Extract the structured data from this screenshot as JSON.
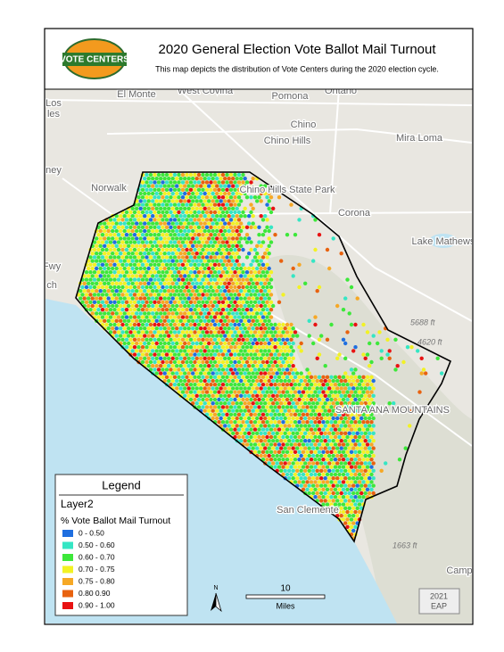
{
  "title": "2020 General Election Vote Ballot Mail Turnout",
  "subtitle": "This map depicts the distribution of Vote Centers during the 2020 election cycle.",
  "logo": "VOTE CENTERS",
  "places": [
    "El Monte",
    "West Covina",
    "Pomona",
    "Ontario",
    "Chino",
    "Chino Hills",
    "Mira Loma",
    "Norwalk",
    "Corona",
    "Lake Mathews",
    "SANTA ANA MOUNTAINS",
    "San Clemente",
    "Los",
    "les",
    "ney",
    "Fwy",
    "ch",
    "Camp",
    "Chino Hills State Park"
  ],
  "elevations": [
    "5688 ft",
    "4620 ft",
    "1663 ft"
  ],
  "legend": {
    "heading": "Legend",
    "layer": "Layer2",
    "field": "% Vote Ballot Mail Turnout",
    "items": [
      {
        "label": "0 - 0.50",
        "color": "#1f6fe0"
      },
      {
        "label": "0.50 - 0.60",
        "color": "#35e6c4"
      },
      {
        "label": "0.60 - 0.70",
        "color": "#3de83a"
      },
      {
        "label": "0.70 - 0.75",
        "color": "#f2f224"
      },
      {
        "label": "0.75 - 0.80",
        "color": "#f6a825"
      },
      {
        "label": "0.80 0.90",
        "color": "#e8620f"
      },
      {
        "label": "0.90 - 1.00",
        "color": "#e81212"
      }
    ]
  },
  "north": "N",
  "scale": {
    "value": 10,
    "unit": "Miles"
  },
  "credit": [
    "2021",
    "EAP"
  ]
}
